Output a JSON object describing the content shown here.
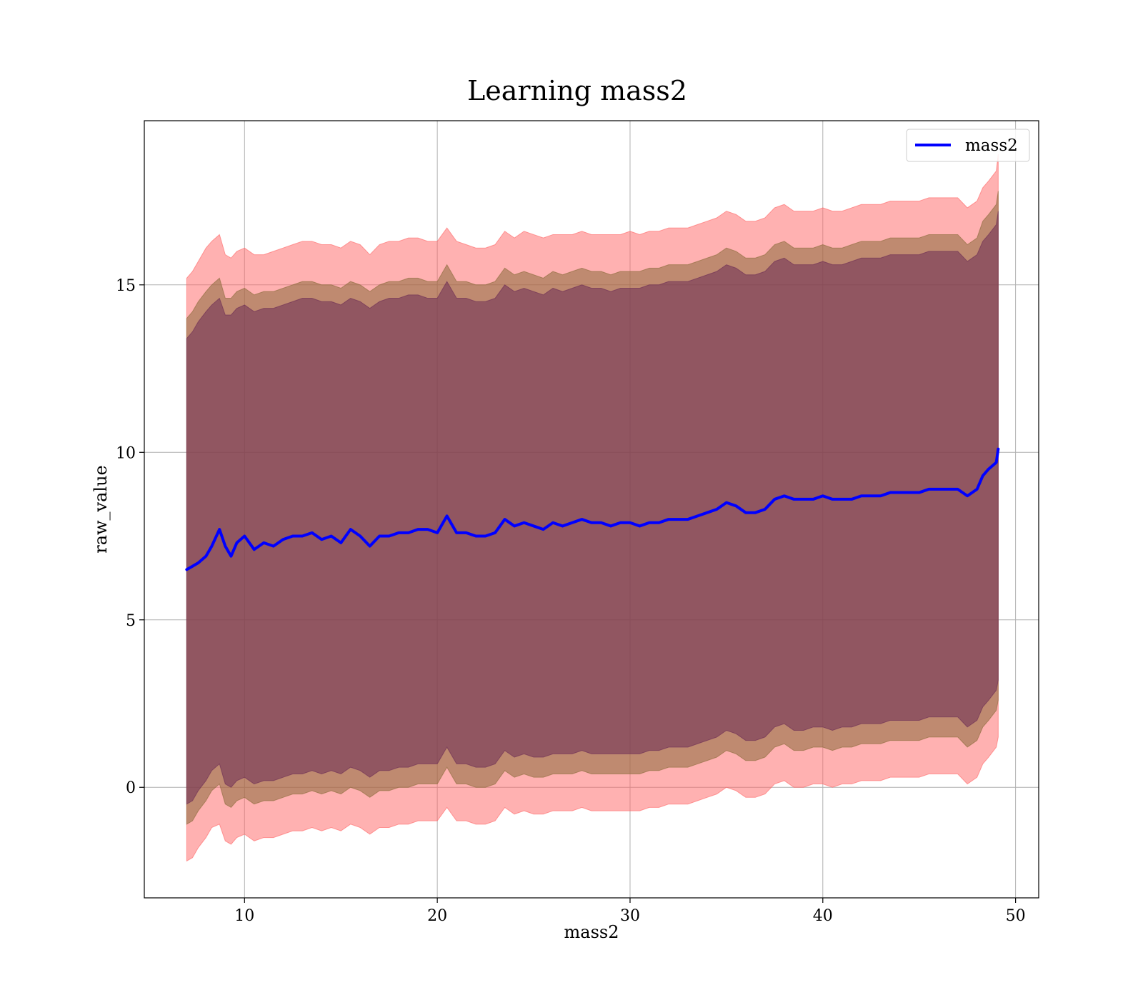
{
  "chart_data": {
    "type": "line",
    "title": "Learning mass2",
    "xlabel": "mass2",
    "ylabel": "raw_value",
    "xlim": [
      4.8,
      51.2
    ],
    "ylim": [
      -3.3,
      19.9
    ],
    "xticks": [
      10,
      20,
      30,
      40,
      50
    ],
    "yticks": [
      0,
      5,
      10,
      15
    ],
    "grid": true,
    "legend_position": "top-right",
    "series": [
      {
        "name": "mass2",
        "color": "#0000ff",
        "x": [
          7.0,
          7.3,
          7.6,
          8.0,
          8.3,
          8.7,
          9.0,
          9.3,
          9.6,
          10.0,
          10.5,
          11.0,
          11.5,
          12.0,
          12.5,
          13.0,
          13.5,
          14.0,
          14.5,
          15.0,
          15.5,
          16.0,
          16.5,
          17.0,
          17.5,
          18.0,
          18.5,
          19.0,
          19.5,
          20.0,
          20.5,
          21.0,
          21.5,
          22.0,
          22.5,
          23.0,
          23.5,
          24.0,
          24.5,
          25.0,
          25.5,
          26.0,
          26.5,
          27.0,
          27.5,
          28.0,
          28.5,
          29.0,
          29.5,
          30.0,
          30.5,
          31.0,
          31.5,
          32.0,
          32.5,
          33.0,
          33.5,
          34.0,
          34.5,
          35.0,
          35.5,
          36.0,
          36.5,
          37.0,
          37.5,
          38.0,
          38.5,
          39.0,
          39.5,
          40.0,
          40.5,
          41.0,
          41.5,
          42.0,
          42.5,
          43.0,
          43.5,
          44.0,
          44.5,
          45.0,
          45.5,
          46.0,
          46.5,
          47.0,
          47.5,
          48.0,
          48.3,
          48.6,
          49.0,
          49.1
        ],
        "y": [
          6.5,
          6.6,
          6.7,
          6.9,
          7.2,
          7.7,
          7.2,
          6.9,
          7.3,
          7.5,
          7.1,
          7.3,
          7.2,
          7.4,
          7.5,
          7.5,
          7.6,
          7.4,
          7.5,
          7.3,
          7.7,
          7.5,
          7.2,
          7.5,
          7.5,
          7.6,
          7.6,
          7.7,
          7.7,
          7.6,
          8.1,
          7.6,
          7.6,
          7.5,
          7.5,
          7.6,
          8.0,
          7.8,
          7.9,
          7.8,
          7.7,
          7.9,
          7.8,
          7.9,
          8.0,
          7.9,
          7.9,
          7.8,
          7.9,
          7.9,
          7.8,
          7.9,
          7.9,
          8.0,
          8.0,
          8.0,
          8.1,
          8.2,
          8.3,
          8.5,
          8.4,
          8.2,
          8.2,
          8.3,
          8.6,
          8.7,
          8.6,
          8.6,
          8.6,
          8.7,
          8.6,
          8.6,
          8.6,
          8.7,
          8.7,
          8.7,
          8.8,
          8.8,
          8.8,
          8.8,
          8.9,
          8.9,
          8.9,
          8.9,
          8.7,
          8.9,
          9.3,
          9.5,
          9.7,
          10.1
        ]
      }
    ],
    "bands": [
      {
        "color": "#ff6464",
        "opacity": 0.5,
        "upper": [
          15.2,
          15.4,
          15.7,
          16.1,
          16.3,
          16.5,
          15.9,
          15.8,
          16.0,
          16.1,
          15.9,
          15.9,
          16.0,
          16.1,
          16.2,
          16.3,
          16.3,
          16.2,
          16.2,
          16.1,
          16.3,
          16.2,
          15.9,
          16.2,
          16.3,
          16.3,
          16.4,
          16.4,
          16.3,
          16.3,
          16.7,
          16.3,
          16.2,
          16.1,
          16.1,
          16.2,
          16.6,
          16.4,
          16.6,
          16.5,
          16.4,
          16.5,
          16.5,
          16.5,
          16.6,
          16.5,
          16.5,
          16.5,
          16.5,
          16.6,
          16.5,
          16.6,
          16.6,
          16.7,
          16.7,
          16.7,
          16.8,
          16.9,
          17.0,
          17.2,
          17.1,
          16.9,
          16.9,
          17.0,
          17.3,
          17.4,
          17.2,
          17.2,
          17.2,
          17.3,
          17.2,
          17.2,
          17.3,
          17.4,
          17.4,
          17.4,
          17.5,
          17.5,
          17.5,
          17.5,
          17.6,
          17.6,
          17.6,
          17.6,
          17.3,
          17.5,
          17.9,
          18.1,
          18.4,
          18.9
        ],
        "lower": [
          -2.2,
          -2.1,
          -1.8,
          -1.5,
          -1.2,
          -1.1,
          -1.6,
          -1.7,
          -1.5,
          -1.4,
          -1.6,
          -1.5,
          -1.5,
          -1.4,
          -1.3,
          -1.3,
          -1.2,
          -1.3,
          -1.2,
          -1.3,
          -1.1,
          -1.2,
          -1.4,
          -1.2,
          -1.2,
          -1.1,
          -1.1,
          -1.0,
          -1.0,
          -1.0,
          -0.6,
          -1.0,
          -1.0,
          -1.1,
          -1.1,
          -1.0,
          -0.6,
          -0.8,
          -0.7,
          -0.8,
          -0.8,
          -0.7,
          -0.7,
          -0.7,
          -0.6,
          -0.7,
          -0.7,
          -0.7,
          -0.7,
          -0.7,
          -0.7,
          -0.6,
          -0.6,
          -0.5,
          -0.5,
          -0.5,
          -0.4,
          -0.3,
          -0.2,
          0.0,
          -0.1,
          -0.3,
          -0.3,
          -0.2,
          0.1,
          0.2,
          0.0,
          0.0,
          0.1,
          0.1,
          0.0,
          0.1,
          0.1,
          0.2,
          0.2,
          0.2,
          0.3,
          0.3,
          0.3,
          0.3,
          0.4,
          0.4,
          0.4,
          0.4,
          0.1,
          0.3,
          0.7,
          0.9,
          1.2,
          1.5
        ]
      },
      {
        "color": "#8b6a3a",
        "opacity": 0.55,
        "upper": [
          14.0,
          14.2,
          14.5,
          14.8,
          15.0,
          15.2,
          14.6,
          14.6,
          14.8,
          14.9,
          14.7,
          14.8,
          14.8,
          14.9,
          15.0,
          15.1,
          15.1,
          15.0,
          15.0,
          14.9,
          15.1,
          15.0,
          14.8,
          15.0,
          15.1,
          15.1,
          15.2,
          15.2,
          15.1,
          15.1,
          15.6,
          15.1,
          15.1,
          15.0,
          15.0,
          15.1,
          15.5,
          15.3,
          15.4,
          15.3,
          15.2,
          15.4,
          15.3,
          15.4,
          15.5,
          15.4,
          15.4,
          15.3,
          15.4,
          15.4,
          15.4,
          15.5,
          15.5,
          15.6,
          15.6,
          15.6,
          15.7,
          15.8,
          15.9,
          16.1,
          16.0,
          15.8,
          15.8,
          15.9,
          16.2,
          16.3,
          16.1,
          16.1,
          16.1,
          16.2,
          16.1,
          16.1,
          16.2,
          16.3,
          16.3,
          16.3,
          16.4,
          16.4,
          16.4,
          16.4,
          16.5,
          16.5,
          16.5,
          16.5,
          16.2,
          16.4,
          16.9,
          17.1,
          17.4,
          17.8
        ],
        "lower": [
          -1.1,
          -1.0,
          -0.7,
          -0.4,
          -0.1,
          0.1,
          -0.5,
          -0.6,
          -0.4,
          -0.3,
          -0.5,
          -0.4,
          -0.4,
          -0.3,
          -0.2,
          -0.2,
          -0.1,
          -0.2,
          -0.1,
          -0.2,
          0.0,
          -0.1,
          -0.3,
          -0.1,
          -0.1,
          0.0,
          0.0,
          0.1,
          0.1,
          0.1,
          0.6,
          0.1,
          0.1,
          0.0,
          0.0,
          0.1,
          0.5,
          0.3,
          0.4,
          0.3,
          0.3,
          0.4,
          0.4,
          0.4,
          0.5,
          0.4,
          0.4,
          0.4,
          0.4,
          0.4,
          0.4,
          0.5,
          0.5,
          0.6,
          0.6,
          0.6,
          0.7,
          0.8,
          0.9,
          1.1,
          1.0,
          0.8,
          0.8,
          0.9,
          1.2,
          1.3,
          1.1,
          1.1,
          1.2,
          1.2,
          1.1,
          1.2,
          1.2,
          1.3,
          1.3,
          1.3,
          1.4,
          1.4,
          1.4,
          1.4,
          1.5,
          1.5,
          1.5,
          1.5,
          1.2,
          1.4,
          1.8,
          2.0,
          2.3,
          2.6
        ]
      },
      {
        "color": "#6b2b55",
        "opacity": 0.55,
        "upper": [
          13.4,
          13.6,
          13.9,
          14.2,
          14.4,
          14.6,
          14.1,
          14.1,
          14.3,
          14.4,
          14.2,
          14.3,
          14.3,
          14.4,
          14.5,
          14.6,
          14.6,
          14.5,
          14.5,
          14.4,
          14.6,
          14.5,
          14.3,
          14.5,
          14.6,
          14.6,
          14.7,
          14.7,
          14.6,
          14.6,
          15.1,
          14.6,
          14.6,
          14.5,
          14.5,
          14.6,
          15.0,
          14.8,
          14.9,
          14.8,
          14.7,
          14.9,
          14.8,
          14.9,
          15.0,
          14.9,
          14.9,
          14.8,
          14.9,
          14.9,
          14.9,
          15.0,
          15.0,
          15.1,
          15.1,
          15.1,
          15.2,
          15.3,
          15.4,
          15.6,
          15.5,
          15.3,
          15.3,
          15.4,
          15.7,
          15.8,
          15.6,
          15.6,
          15.6,
          15.7,
          15.6,
          15.6,
          15.7,
          15.8,
          15.8,
          15.8,
          15.9,
          15.9,
          15.9,
          15.9,
          16.0,
          16.0,
          16.0,
          16.0,
          15.7,
          15.9,
          16.3,
          16.5,
          16.8,
          17.2
        ],
        "lower": [
          -0.5,
          -0.4,
          -0.1,
          0.2,
          0.5,
          0.7,
          0.1,
          0.0,
          0.2,
          0.3,
          0.1,
          0.2,
          0.2,
          0.3,
          0.4,
          0.4,
          0.5,
          0.4,
          0.5,
          0.4,
          0.6,
          0.5,
          0.3,
          0.5,
          0.5,
          0.6,
          0.6,
          0.7,
          0.7,
          0.7,
          1.2,
          0.7,
          0.7,
          0.6,
          0.6,
          0.7,
          1.1,
          0.9,
          1.0,
          0.9,
          0.9,
          1.0,
          1.0,
          1.0,
          1.1,
          1.0,
          1.0,
          1.0,
          1.0,
          1.0,
          1.0,
          1.1,
          1.1,
          1.2,
          1.2,
          1.2,
          1.3,
          1.4,
          1.5,
          1.7,
          1.6,
          1.4,
          1.4,
          1.5,
          1.8,
          1.9,
          1.7,
          1.7,
          1.8,
          1.8,
          1.7,
          1.8,
          1.8,
          1.9,
          1.9,
          1.9,
          2.0,
          2.0,
          2.0,
          2.0,
          2.1,
          2.1,
          2.1,
          2.1,
          1.8,
          2.0,
          2.4,
          2.6,
          2.9,
          3.2
        ]
      }
    ]
  }
}
